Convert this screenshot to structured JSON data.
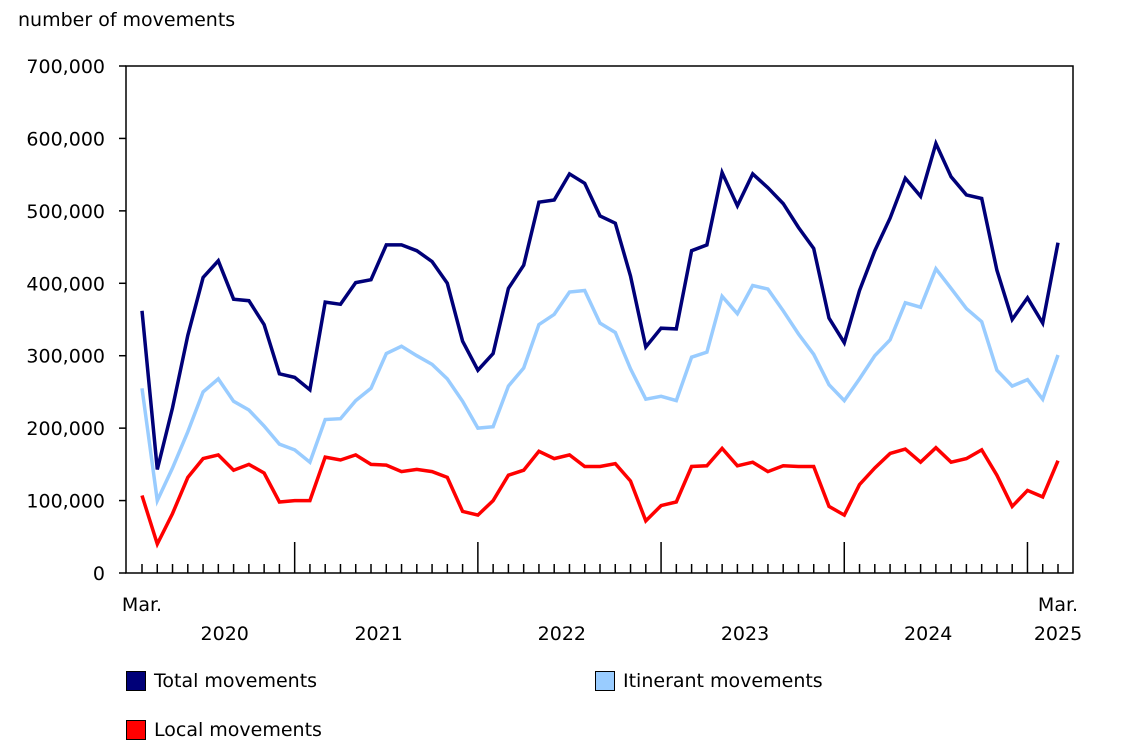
{
  "chart_data": {
    "type": "line",
    "ylabel": "number of movements",
    "ylim": [
      0,
      700000
    ],
    "yticks": [
      "0",
      "100,000",
      "200,000",
      "300,000",
      "400,000",
      "500,000",
      "600,000",
      "700,000"
    ],
    "x_start": "2020-03",
    "x_end": "2025-03",
    "x_tick_labels": {
      "start_month": "Mar.",
      "end_month": "Mar.",
      "years": [
        "2020",
        "2021",
        "2022",
        "2023",
        "2024",
        "2025"
      ]
    },
    "grid": false,
    "legend_placement": "bottom",
    "series": [
      {
        "name": "Total movements",
        "color": "#000078",
        "values": [
          362000,
          143000,
          228000,
          328000,
          408000,
          431000,
          378000,
          376000,
          343000,
          275000,
          270000,
          253000,
          374000,
          371000,
          401000,
          405000,
          453000,
          453000,
          445000,
          430000,
          400000,
          320000,
          280000,
          303000,
          393000,
          425000,
          512000,
          515000,
          551000,
          538000,
          493000,
          483000,
          410000,
          312000,
          338000,
          337000,
          445000,
          453000,
          553000,
          507000,
          551000,
          532000,
          510000,
          477000,
          448000,
          352000,
          318000,
          390000,
          445000,
          490000,
          545000,
          520000,
          593000,
          547000,
          522000,
          517000,
          418000,
          350000,
          380000,
          345000,
          456000
        ]
      },
      {
        "name": "Itinerant movements",
        "color": "#99ccff",
        "values": [
          255000,
          100000,
          145000,
          195000,
          250000,
          268000,
          237000,
          225000,
          203000,
          178000,
          170000,
          153000,
          212000,
          213000,
          238000,
          255000,
          303000,
          313000,
          300000,
          288000,
          268000,
          237000,
          200000,
          202000,
          258000,
          283000,
          343000,
          357000,
          388000,
          390000,
          345000,
          332000,
          282000,
          240000,
          244000,
          238000,
          298000,
          305000,
          382000,
          358000,
          397000,
          392000,
          362000,
          330000,
          302000,
          260000,
          238000,
          268000,
          300000,
          322000,
          373000,
          367000,
          420000,
          393000,
          365000,
          347000,
          280000,
          258000,
          267000,
          240000,
          301000
        ]
      },
      {
        "name": "Local movements",
        "color": "#ff0000",
        "values": [
          107000,
          40000,
          82000,
          132000,
          158000,
          163000,
          142000,
          150000,
          138000,
          98000,
          100000,
          100000,
          160000,
          156000,
          163000,
          150000,
          149000,
          140000,
          143000,
          140000,
          132000,
          85000,
          80000,
          100000,
          135000,
          142000,
          168000,
          158000,
          163000,
          147000,
          147000,
          151000,
          127000,
          72000,
          93000,
          98000,
          147000,
          148000,
          172000,
          148000,
          153000,
          140000,
          148000,
          147000,
          147000,
          92000,
          80000,
          122000,
          145000,
          165000,
          171000,
          153000,
          173000,
          153000,
          158000,
          170000,
          135000,
          92000,
          114000,
          105000,
          155000
        ]
      }
    ]
  }
}
